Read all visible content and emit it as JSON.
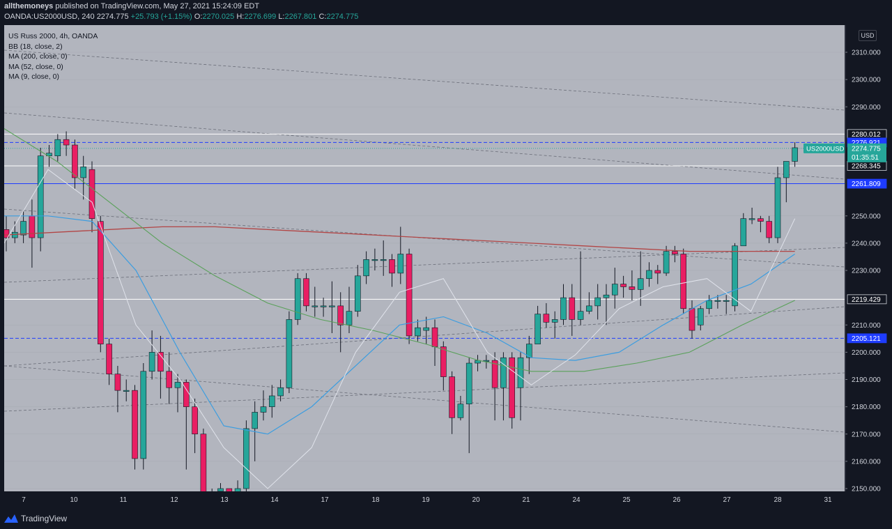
{
  "header": {
    "author": "allthemoneys",
    "published": "published on TradingView.com, May 27, 2021 15:24:09 EDT",
    "symbol_line": "OANDA:US2000USD, 240",
    "last": "2274.775",
    "change": "+25.793 (+1.15%)",
    "o_label": "O:",
    "o": "2270.025",
    "h_label": "H:",
    "h": "2276.699",
    "l_label": "L:",
    "l": "2267.801",
    "c_label": "C:",
    "c": "2274.775"
  },
  "legend": {
    "title": "US Russ 2000, 4h, OANDA",
    "bb": "BB (18, close, 2)",
    "ma200": "MA (200, close, 0)",
    "ma52": "MA (52, close, 0)",
    "ma9": "MA (9, close, 0)"
  },
  "currency_button": "USD",
  "footer": {
    "brand": "TradingView"
  },
  "colors": {
    "bg": "#131722",
    "plot": "#b2b5be",
    "up": "#26a69a",
    "down": "#e91e63",
    "ma200": "#b24545",
    "ma52": "#5aa15a",
    "ma9": "#e0e3eb",
    "bbmid": "#3b9de0",
    "blueline": "#1e3cff"
  },
  "chart_data": {
    "type": "candlestick",
    "y_axis": {
      "ticks": [
        "2310.000",
        "2300.000",
        "2290.000",
        "2280.012",
        "2276.921",
        "2274.775",
        "2268.345",
        "2261.809",
        "2250.000",
        "2240.000",
        "2230.000",
        "2219.429",
        "2210.000",
        "2205.121",
        "2200.000",
        "2190.000",
        "2180.000",
        "2170.000",
        "2160.000",
        "2150.000"
      ],
      "range": [
        2148,
        2320
      ]
    },
    "x_axis": {
      "ticks": [
        "7",
        "10",
        "11",
        "12",
        "13",
        "14",
        "17",
        "18",
        "19",
        "20",
        "21",
        "24",
        "25",
        "26",
        "27",
        "28",
        "31"
      ]
    },
    "price_tag": {
      "symbol": "US2000USD",
      "price": "2274.775",
      "countdown": "01:35:51"
    },
    "hlines": [
      {
        "price": 2280.012,
        "label": "2280.012",
        "style": "solid-white"
      },
      {
        "price": 2276.921,
        "label": "2276.921",
        "style": "dashed-blue"
      },
      {
        "price": 2268.345,
        "label": "2268.345",
        "style": "solid-white"
      },
      {
        "price": 2261.809,
        "label": "2261.809",
        "style": "solid-blue"
      },
      {
        "price": 2219.429,
        "label": "2219.429",
        "style": "solid-white"
      },
      {
        "price": 2205.121,
        "label": "2205.121",
        "style": "dashed-blue"
      }
    ],
    "candles": [
      [
        2245,
        2242,
        2250,
        2237
      ],
      [
        2242,
        2244,
        2248,
        2240
      ],
      [
        2243,
        2248,
        2252,
        2240
      ],
      [
        2250,
        2242,
        2256,
        2231
      ],
      [
        2242,
        2272,
        2275,
        2237
      ],
      [
        2272,
        2273,
        2276,
        2268
      ],
      [
        2272,
        2278,
        2280,
        2270
      ],
      [
        2278,
        2276,
        2281,
        2272
      ],
      [
        2276,
        2264,
        2278,
        2260
      ],
      [
        2264,
        2268,
        2272,
        2256
      ],
      [
        2267,
        2249,
        2270,
        2244
      ],
      [
        2248,
        2203,
        2250,
        2200
      ],
      [
        2203,
        2192,
        2205,
        2188
      ],
      [
        2192,
        2186,
        2195,
        2178
      ],
      [
        2186,
        2186,
        2190,
        2182
      ],
      [
        2186,
        2161,
        2188,
        2157
      ],
      [
        2161,
        2193,
        2196,
        2157
      ],
      [
        2193,
        2200,
        2208,
        2190
      ],
      [
        2200,
        2193,
        2206,
        2183
      ],
      [
        2193,
        2187,
        2200,
        2181
      ],
      [
        2187,
        2189,
        2192,
        2178
      ],
      [
        2189,
        2180,
        2190,
        2157
      ],
      [
        2180,
        2170,
        2183,
        2163
      ],
      [
        2170,
        2148,
        2172,
        2145
      ],
      [
        2148,
        2145,
        2150,
        2140
      ],
      [
        2149,
        2150,
        2152,
        2146
      ],
      [
        2150,
        2145,
        2150,
        2141
      ],
      [
        2145,
        2150,
        2153,
        2143
      ],
      [
        2150,
        2172,
        2175,
        2148
      ],
      [
        2172,
        2178,
        2182,
        2160
      ],
      [
        2178,
        2180,
        2186,
        2175
      ],
      [
        2180,
        2184,
        2188,
        2176
      ],
      [
        2184,
        2187,
        2190,
        2182
      ],
      [
        2187,
        2212,
        2215,
        2185
      ],
      [
        2212,
        2227,
        2229,
        2210
      ],
      [
        2227,
        2217,
        2229,
        2215
      ],
      [
        2217,
        2217,
        2224,
        2213
      ],
      [
        2217,
        2217,
        2220,
        2213
      ],
      [
        2217,
        2217,
        2226,
        2207
      ],
      [
        2217,
        2210,
        2222,
        2200
      ],
      [
        2210,
        2215,
        2224,
        2207
      ],
      [
        2215,
        2228,
        2232,
        2213
      ],
      [
        2228,
        2234,
        2237,
        2225
      ],
      [
        2234,
        2234,
        2238,
        2230
      ],
      [
        2234,
        2234,
        2241,
        2228
      ],
      [
        2234,
        2229,
        2236,
        2224
      ],
      [
        2229,
        2236,
        2246,
        2225
      ],
      [
        2236,
        2206,
        2238,
        2203
      ],
      [
        2206,
        2209,
        2212,
        2204
      ],
      [
        2208,
        2209,
        2213,
        2203
      ],
      [
        2209,
        2202,
        2212,
        2195
      ],
      [
        2202,
        2191,
        2204,
        2186
      ],
      [
        2191,
        2176,
        2193,
        2170
      ],
      [
        2176,
        2181,
        2184,
        2175
      ],
      [
        2181,
        2196,
        2198,
        2163
      ],
      [
        2196,
        2197,
        2199,
        2193
      ],
      [
        2197,
        2197,
        2199,
        2194
      ],
      [
        2197,
        2187,
        2200,
        2175
      ],
      [
        2187,
        2198,
        2200,
        2175
      ],
      [
        2198,
        2176,
        2200,
        2172
      ],
      [
        2187,
        2198,
        2200,
        2175
      ],
      [
        2198,
        2203,
        2206,
        2192
      ],
      [
        2203,
        2214,
        2217,
        2204
      ],
      [
        2214,
        2211,
        2218,
        2209
      ],
      [
        2211,
        2212,
        2215,
        2205
      ],
      [
        2212,
        2220,
        2225,
        2210
      ],
      [
        2220,
        2212,
        2225,
        2206
      ],
      [
        2212,
        2215,
        2237,
        2210
      ],
      [
        2215,
        2217,
        2222,
        2214
      ],
      [
        2217,
        2220,
        2225,
        2212
      ],
      [
        2220,
        2221,
        2225,
        2210
      ],
      [
        2221,
        2225,
        2231,
        2216
      ],
      [
        2225,
        2224,
        2228,
        2220
      ],
      [
        2224,
        2223,
        2230,
        2219
      ],
      [
        2223,
        2227,
        2237,
        2217
      ],
      [
        2227,
        2230,
        2233,
        2224
      ],
      [
        2230,
        2229,
        2232,
        2225
      ],
      [
        2229,
        2237,
        2239,
        2228
      ],
      [
        2237,
        2236,
        2239,
        2233
      ],
      [
        2236,
        2216,
        2238,
        2214
      ],
      [
        2216,
        2208,
        2219,
        2205
      ],
      [
        2210,
        2216,
        2217,
        2208
      ],
      [
        2216,
        2219,
        2221,
        2214
      ],
      [
        2219,
        2219,
        2221,
        2216
      ],
      [
        2219,
        2219,
        2221,
        2214
      ],
      [
        2217,
        2239,
        2240,
        2215
      ],
      [
        2239,
        2249,
        2251,
        2239
      ],
      [
        2249,
        2249,
        2253,
        2247
      ],
      [
        2249,
        2248,
        2250,
        2244
      ],
      [
        2248,
        2242,
        2250,
        2240
      ],
      [
        2242,
        2264,
        2268,
        2240
      ],
      [
        2264,
        2270,
        2270,
        2255
      ],
      [
        2270,
        2275,
        2277,
        2268
      ]
    ],
    "ma200": [
      2243,
      2244,
      2245,
      2246,
      2246,
      2245,
      2244,
      2243,
      2242,
      2241,
      2240,
      2239,
      2238,
      2237,
      2237,
      2237
    ],
    "ma52": [
      2282,
      2270,
      2255,
      2240,
      2228,
      2218,
      2212,
      2208,
      2203,
      2197,
      2193,
      2193,
      2196,
      2200,
      2210,
      2219
    ],
    "ma9": [
      2240,
      2267,
      2255,
      2210,
      2190,
      2165,
      2150,
      2165,
      2200,
      2222,
      2227,
      2200,
      2188,
      2199,
      2216,
      2224,
      2227,
      2215,
      2249
    ],
    "bb_mid": [
      2250,
      2250,
      2248,
      2230,
      2200,
      2173,
      2170,
      2180,
      2195,
      2210,
      2213,
      2207,
      2198,
      2197,
      2200,
      2210,
      2219,
      2225,
      2236
    ]
  }
}
